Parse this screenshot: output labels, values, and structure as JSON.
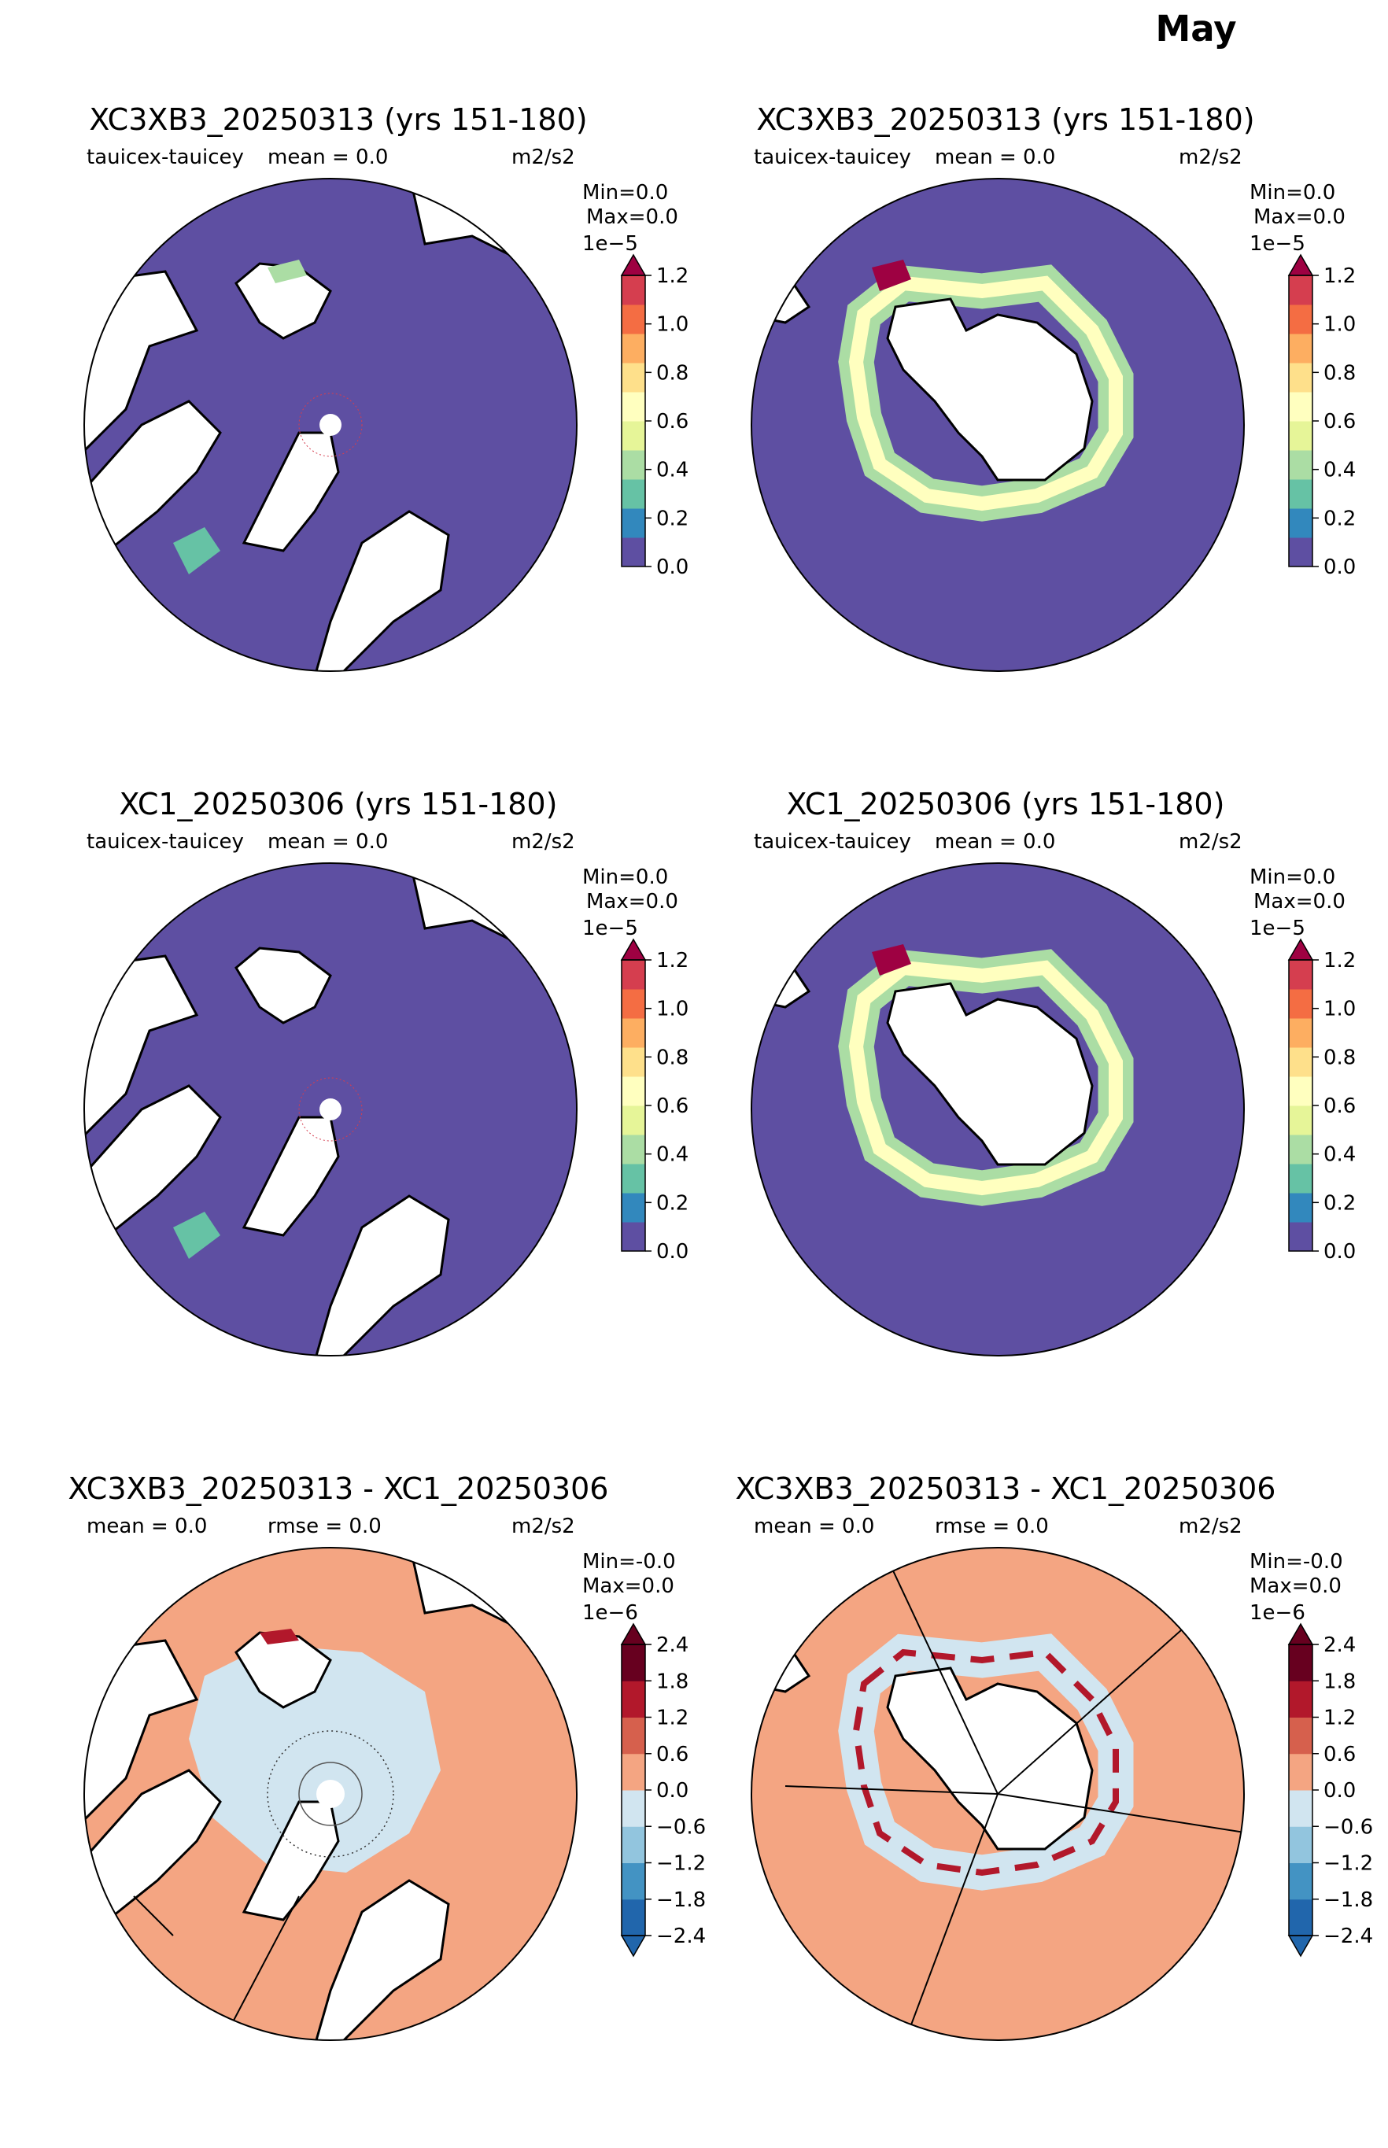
{
  "suptitle": "May",
  "seq_colors": [
    "#5e4fa2",
    "#3288bd",
    "#66c2a5",
    "#abdda4",
    "#e6f598",
    "#ffffbf",
    "#fee08b",
    "#fdae61",
    "#f46d43",
    "#d53e4f",
    "#9e0142"
  ],
  "div_colors": [
    "#2166ac",
    "#4393c3",
    "#92c5de",
    "#d1e5f0",
    "#f4a582",
    "#d6604d",
    "#b2182b",
    "#67001f"
  ],
  "panels": [
    {
      "title": "XC3XB3_20250313 (yrs 151-180)",
      "var": "tauicex-tauicey",
      "mean": "mean = 0.0",
      "units": "m2/s2",
      "min": "Min=0.0",
      "max": "Max=0.0",
      "exponent": "1e−5",
      "ticks": [
        "0.0",
        "0.2",
        "0.4",
        "0.6",
        "0.8",
        "1.0",
        "1.2"
      ]
    },
    {
      "title": "XC3XB3_20250313 (yrs 151-180)",
      "var": "tauicex-tauicey",
      "mean": "mean = 0.0",
      "units": "m2/s2",
      "min": "Min=0.0",
      "max": "Max=0.0",
      "exponent": "1e−5",
      "ticks": [
        "0.0",
        "0.2",
        "0.4",
        "0.6",
        "0.8",
        "1.0",
        "1.2"
      ]
    },
    {
      "title": "XC1_20250306 (yrs 151-180)",
      "var": "tauicex-tauicey",
      "mean": "mean = 0.0",
      "units": "m2/s2",
      "min": "Min=0.0",
      "max": "Max=0.0",
      "exponent": "1e−5",
      "ticks": [
        "0.0",
        "0.2",
        "0.4",
        "0.6",
        "0.8",
        "1.0",
        "1.2"
      ]
    },
    {
      "title": "XC1_20250306 (yrs 151-180)",
      "var": "tauicex-tauicey",
      "mean": "mean = 0.0",
      "units": "m2/s2",
      "min": "Min=0.0",
      "max": "Max=0.0",
      "exponent": "1e−5",
      "ticks": [
        "0.0",
        "0.2",
        "0.4",
        "0.6",
        "0.8",
        "1.0",
        "1.2"
      ]
    },
    {
      "title": "XC3XB3_20250313 - XC1_20250306",
      "mean": "mean = 0.0",
      "rmse": "rmse = 0.0",
      "units": "m2/s2",
      "min": "Min=-0.0",
      "max": "Max=0.0",
      "exponent": "1e−6",
      "ticks": [
        "2.4",
        "1.8",
        "1.2",
        "0.6",
        "0.0",
        "−0.6",
        "−1.2",
        "−1.8",
        "−2.4"
      ]
    },
    {
      "title": "XC3XB3_20250313 - XC1_20250306",
      "mean": "mean = 0.0",
      "rmse": "rmse = 0.0",
      "units": "m2/s2",
      "min": "Min=-0.0",
      "max": "Max=0.0",
      "exponent": "1e−6",
      "ticks": [
        "2.4",
        "1.8",
        "1.2",
        "0.6",
        "0.0",
        "−0.6",
        "−1.2",
        "−1.8",
        "−2.4"
      ]
    }
  ],
  "chart_data": [
    {
      "type": "heatmap",
      "projection": "north-polar-stereographic",
      "title": "XC3XB3_20250313 (yrs 151-180)",
      "variable": "tauicex-tauicey",
      "units": "m2/s2",
      "mean": 0.0,
      "min": 0.0,
      "max": 0.0,
      "colorbar": {
        "scale": "1e-5",
        "range": [
          0.0,
          1.2
        ],
        "ticks": [
          0.0,
          0.2,
          0.4,
          0.6,
          0.8,
          1.0,
          1.2
        ],
        "extend": "max"
      }
    },
    {
      "type": "heatmap",
      "projection": "south-polar-stereographic",
      "title": "XC3XB3_20250313 (yrs 151-180)",
      "variable": "tauicex-tauicey",
      "units": "m2/s2",
      "mean": 0.0,
      "min": 0.0,
      "max": 0.0,
      "colorbar": {
        "scale": "1e-5",
        "range": [
          0.0,
          1.2
        ],
        "ticks": [
          0.0,
          0.2,
          0.4,
          0.6,
          0.8,
          1.0,
          1.2
        ],
        "extend": "max"
      }
    },
    {
      "type": "heatmap",
      "projection": "north-polar-stereographic",
      "title": "XC1_20250306 (yrs 151-180)",
      "variable": "tauicex-tauicey",
      "units": "m2/s2",
      "mean": 0.0,
      "min": 0.0,
      "max": 0.0,
      "colorbar": {
        "scale": "1e-5",
        "range": [
          0.0,
          1.2
        ],
        "ticks": [
          0.0,
          0.2,
          0.4,
          0.6,
          0.8,
          1.0,
          1.2
        ],
        "extend": "max"
      }
    },
    {
      "type": "heatmap",
      "projection": "south-polar-stereographic",
      "title": "XC1_20250306 (yrs 151-180)",
      "variable": "tauicex-tauicey",
      "units": "m2/s2",
      "mean": 0.0,
      "min": 0.0,
      "max": 0.0,
      "colorbar": {
        "scale": "1e-5",
        "range": [
          0.0,
          1.2
        ],
        "ticks": [
          0.0,
          0.2,
          0.4,
          0.6,
          0.8,
          1.0,
          1.2
        ],
        "extend": "max"
      }
    },
    {
      "type": "heatmap",
      "projection": "north-polar-stereographic",
      "title": "XC3XB3_20250313 - XC1_20250306",
      "units": "m2/s2",
      "mean": 0.0,
      "rmse": 0.0,
      "min": -0.0,
      "max": 0.0,
      "colorbar": {
        "scale": "1e-6",
        "range": [
          -2.4,
          2.4
        ],
        "ticks": [
          -2.4,
          -1.8,
          -1.2,
          -0.6,
          0.0,
          0.6,
          1.2,
          1.8,
          2.4
        ],
        "extend": "both"
      }
    },
    {
      "type": "heatmap",
      "projection": "south-polar-stereographic",
      "title": "XC3XB3_20250313 - XC1_20250306",
      "units": "m2/s2",
      "mean": 0.0,
      "rmse": 0.0,
      "min": -0.0,
      "max": 0.0,
      "colorbar": {
        "scale": "1e-6",
        "range": [
          -2.4,
          2.4
        ],
        "ticks": [
          -2.4,
          -1.8,
          -1.2,
          -0.6,
          0.0,
          0.6,
          1.2,
          1.8,
          2.4
        ],
        "extend": "both"
      }
    }
  ]
}
